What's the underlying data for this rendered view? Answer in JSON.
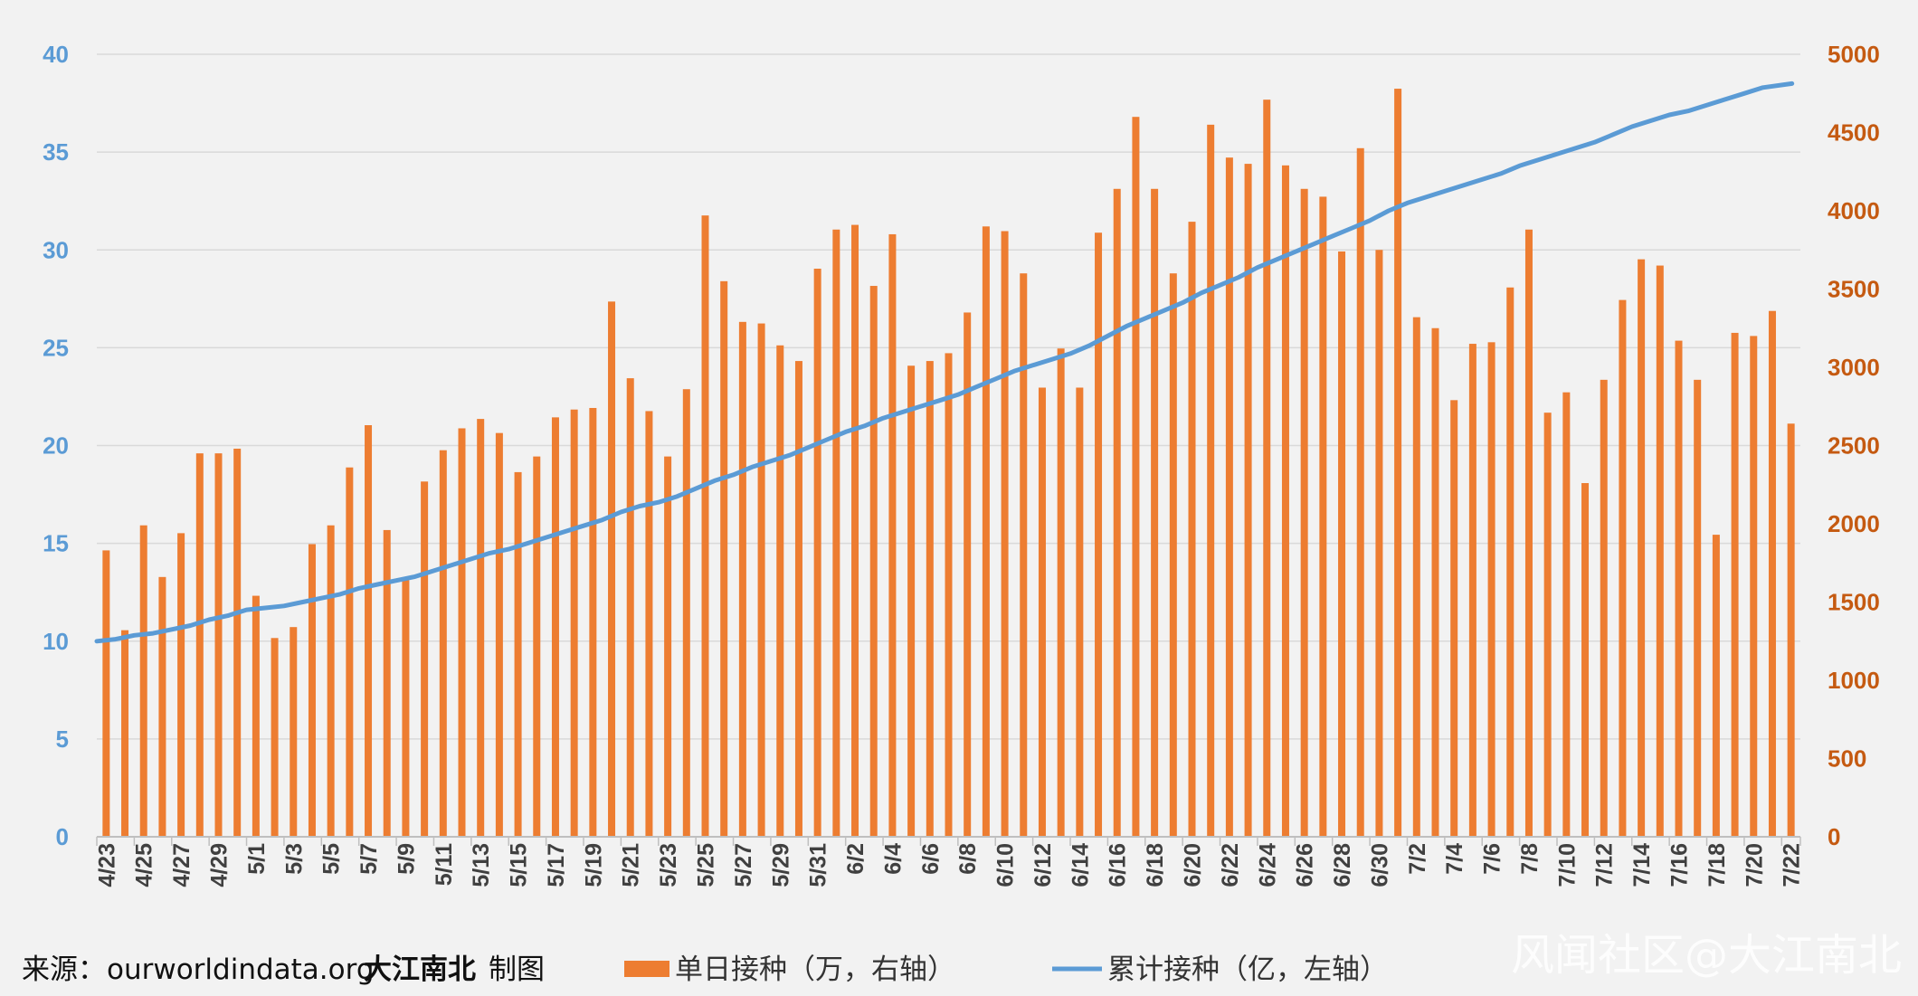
{
  "chart_data": {
    "type": "bar+line",
    "title": "",
    "categories": [
      "4/23",
      "4/24",
      "4/25",
      "4/26",
      "4/27",
      "4/28",
      "4/29",
      "4/30",
      "5/1",
      "5/2",
      "5/3",
      "5/4",
      "5/5",
      "5/6",
      "5/7",
      "5/8",
      "5/9",
      "5/10",
      "5/11",
      "5/12",
      "5/13",
      "5/14",
      "5/15",
      "5/16",
      "5/17",
      "5/18",
      "5/19",
      "5/20",
      "5/21",
      "5/22",
      "5/23",
      "5/24",
      "5/25",
      "5/26",
      "5/27",
      "5/28",
      "5/29",
      "5/30",
      "5/31",
      "6/1",
      "6/2",
      "6/3",
      "6/4",
      "6/5",
      "6/6",
      "6/7",
      "6/8",
      "6/9",
      "6/10",
      "6/11",
      "6/12",
      "6/13",
      "6/14",
      "6/15",
      "6/16",
      "6/17",
      "6/18",
      "6/19",
      "6/20",
      "6/21",
      "6/22",
      "6/23",
      "6/24",
      "6/25",
      "6/26",
      "6/27",
      "6/28",
      "6/29",
      "6/30",
      "7/1",
      "7/2",
      "7/3",
      "7/4",
      "7/5",
      "7/6",
      "7/7",
      "7/8",
      "7/9",
      "7/10",
      "7/11",
      "7/12",
      "7/13",
      "7/14",
      "7/15",
      "7/16",
      "7/17",
      "7/18",
      "7/19",
      "7/20",
      "7/21",
      "7/22"
    ],
    "x_tick_labels": [
      "4/23",
      "4/25",
      "4/27",
      "4/29",
      "5/1",
      "5/3",
      "5/5",
      "5/7",
      "5/9",
      "5/11",
      "5/13",
      "5/15",
      "5/17",
      "5/19",
      "5/21",
      "5/23",
      "5/25",
      "5/27",
      "5/29",
      "5/31",
      "6/2",
      "6/4",
      "6/6",
      "6/8",
      "6/10",
      "6/12",
      "6/14",
      "6/16",
      "6/18",
      "6/20",
      "6/22",
      "6/24",
      "6/26",
      "6/28",
      "6/30",
      "7/2",
      "7/4",
      "7/6",
      "7/8",
      "7/10",
      "7/12",
      "7/14",
      "7/16",
      "7/18",
      "7/20",
      "7/22"
    ],
    "left_axis": {
      "ylim": [
        0,
        40
      ],
      "ticks": [
        "0",
        "5",
        "10",
        "15",
        "20",
        "25",
        "30",
        "35",
        "40"
      ],
      "color": "#5b9bd5"
    },
    "right_axis": {
      "ylim": [
        0,
        5000
      ],
      "ticks": [
        "0",
        "500",
        "1000",
        "1500",
        "2000",
        "2500",
        "3000",
        "3500",
        "4000",
        "4500",
        "5000"
      ],
      "color": "#c55a11"
    },
    "grid": true,
    "series": [
      {
        "name": "单日接种（万，右轴）",
        "type": "bar",
        "axis": "right",
        "color": "#ed7d31",
        "values": [
          1830,
          1320,
          1990,
          1660,
          1940,
          2450,
          2450,
          2480,
          1540,
          1270,
          1340,
          1870,
          1990,
          2360,
          2630,
          1960,
          1640,
          2270,
          2470,
          2610,
          2670,
          2580,
          2330,
          2430,
          2680,
          2730,
          2740,
          3420,
          2930,
          2720,
          2430,
          2860,
          3970,
          3550,
          3290,
          3280,
          3140,
          3040,
          3630,
          3880,
          3910,
          3520,
          3850,
          3010,
          3040,
          3090,
          3350,
          3900,
          3870,
          3600,
          2870,
          3120,
          2870,
          3860,
          4140,
          4600,
          4140,
          3600,
          3930,
          4550,
          4340,
          4300,
          4710,
          4290,
          4140,
          4090,
          3740,
          4400,
          3750,
          4780,
          3320,
          3250,
          2790,
          3150,
          3160,
          3510,
          3880,
          2710,
          2840,
          2260,
          2920,
          3430,
          3690,
          3650,
          3170,
          2920,
          1930,
          3220,
          3200,
          3360,
          2640
        ]
      },
      {
        "name": "累计接种（亿，左轴）",
        "type": "line",
        "axis": "left",
        "color": "#5b9bd5",
        "values": [
          10.0,
          10.1,
          10.3,
          10.4,
          10.6,
          10.8,
          11.1,
          11.3,
          11.6,
          11.7,
          11.8,
          12.0,
          12.2,
          12.4,
          12.7,
          12.9,
          13.1,
          13.3,
          13.6,
          13.9,
          14.2,
          14.5,
          14.7,
          15.0,
          15.3,
          15.6,
          15.9,
          16.2,
          16.6,
          16.9,
          17.1,
          17.4,
          17.8,
          18.2,
          18.5,
          18.9,
          19.2,
          19.5,
          19.9,
          20.3,
          20.7,
          21.0,
          21.4,
          21.7,
          22.0,
          22.3,
          22.6,
          23.0,
          23.4,
          23.8,
          24.1,
          24.4,
          24.7,
          25.1,
          25.6,
          26.1,
          26.5,
          26.9,
          27.3,
          27.8,
          28.2,
          28.6,
          29.1,
          29.5,
          29.9,
          30.3,
          30.7,
          31.1,
          31.5,
          32.0,
          32.4,
          32.7,
          33.0,
          33.3,
          33.6,
          33.9,
          34.3,
          34.6,
          34.9,
          35.2,
          35.5,
          35.9,
          36.3,
          36.6,
          36.9,
          37.1,
          37.4,
          37.7,
          38.0,
          38.3,
          38.5
        ]
      }
    ]
  },
  "footer": {
    "source_label": "来源：",
    "source_url": "ourworldindata.org",
    "author": "大江南北",
    "author_suffix": "制图",
    "legend_bar": "单日接种（万，右轴）",
    "legend_line": "累计接种（亿，左轴）"
  },
  "watermark": "风闻社区@大江南北"
}
